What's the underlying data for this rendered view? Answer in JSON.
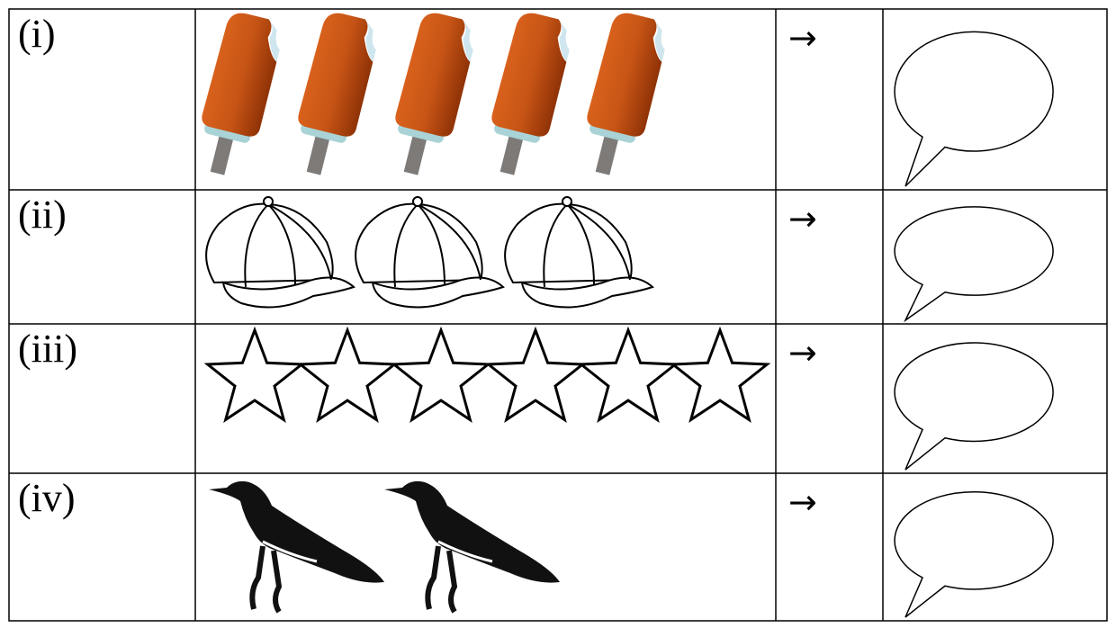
{
  "rows": [
    {
      "label": "(i)",
      "arrow": "→"
    },
    {
      "label": "(ii)",
      "arrow": "→"
    },
    {
      "label": "(iii)",
      "arrow": "→"
    },
    {
      "label": "(iv)",
      "arrow": "→"
    }
  ]
}
